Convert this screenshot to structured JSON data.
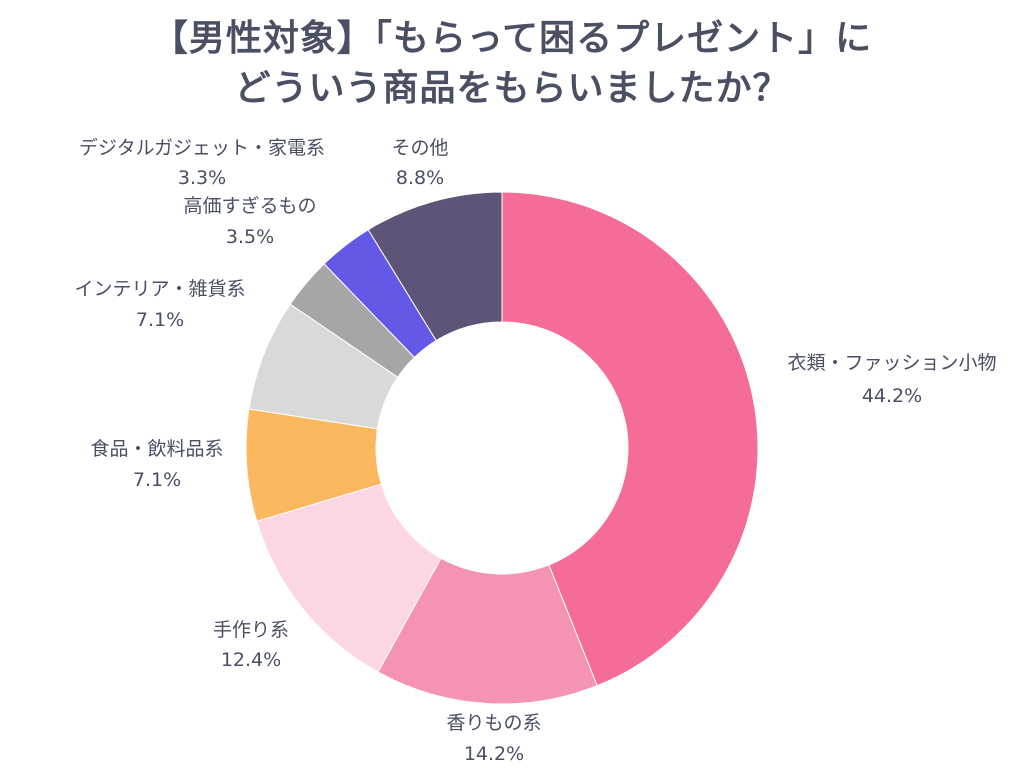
{
  "title": {
    "line1": "【男性対象】「もらって困るプレゼント」に",
    "line2": "どういう商品をもらいましたか？"
  },
  "chart_data": {
    "type": "pie",
    "subtype": "donut",
    "title": "【男性対象】「もらって困るプレゼント」にどういう商品をもらいましたか？",
    "start_angle_deg": 0,
    "direction": "clockwise",
    "slices": [
      {
        "label": "衣類・ファッション小物",
        "value": 44.2,
        "display": "44.2%",
        "color": "#f56d97"
      },
      {
        "label": "香りもの系",
        "value": 14.2,
        "display": "14.2%",
        "color": "#f594b2"
      },
      {
        "label": "手作り系",
        "value": 12.4,
        "display": "12.4%",
        "color": "#fcd6e2"
      },
      {
        "label": "食品・飲料品系",
        "value": 7.1,
        "display": "7.1%",
        "color": "#fbb85e"
      },
      {
        "label": "インテリア・雑貨系",
        "value": 7.1,
        "display": "7.1%",
        "color": "#d9d9d9"
      },
      {
        "label": "デジタルガジェット・家電系",
        "value": 3.3,
        "display": "3.3%",
        "color": "#a6a6a6"
      },
      {
        "label": "高価すぎるもの",
        "value": 3.5,
        "display": "3.5%",
        "color": "#6359e6"
      },
      {
        "label": "その他",
        "value": 8.8,
        "display": "8.8%",
        "color": "#5d5478"
      }
    ]
  }
}
